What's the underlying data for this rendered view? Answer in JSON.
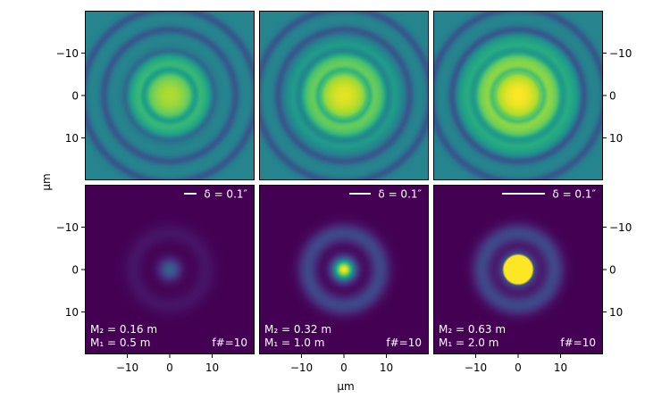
{
  "chart_data": {
    "type": "heatmap",
    "layout": "2x3 panel grid, shared axes",
    "xlabel": "μm",
    "ylabel": "μm",
    "xlim": [
      -20,
      20
    ],
    "ylim": [
      -20,
      20
    ],
    "xticks": [
      -10,
      0,
      10
    ],
    "yticks": [
      -10,
      0,
      10
    ],
    "xtick_labels": [
      "−10",
      "0",
      "10"
    ],
    "ytick_labels": [
      "10",
      "0",
      "−10"
    ],
    "colormap": "viridis",
    "rows": [
      {
        "name": "top",
        "description_scale": "log intensity",
        "panels": [
          {
            "peak": 0.88,
            "ring_radii": [
              6.0,
              10.5,
              15.5,
              20.5
            ],
            "ring_depth": 0.18,
            "falloff": 0.025
          },
          {
            "peak": 0.96,
            "ring_radii": [
              6.0,
              10.5,
              15.5,
              20.5
            ],
            "ring_depth": 0.18,
            "falloff": 0.02
          },
          {
            "peak": 1.0,
            "ring_radii": [
              6.0,
              10.5,
              15.5,
              20.5
            ],
            "ring_depth": 0.18,
            "falloff": 0.015
          }
        ]
      },
      {
        "name": "bottom",
        "description_scale": "linear intensity",
        "panels": [
          {
            "scalebar_label": "δ = 0.1″",
            "M2": "M₂ = 0.16 m",
            "M1": "M₁ = 0.5 m",
            "fnum": "f#=10",
            "core_peak": 0.32,
            "core_radius": 3.2
          },
          {
            "scalebar_label": "δ = 0.1″",
            "M2": "M₂ = 0.32 m",
            "M1": "M₁ = 1.0 m",
            "fnum": "f#=10",
            "core_peak": 1.0,
            "core_radius": 3.2
          },
          {
            "scalebar_label": "δ = 0.1″",
            "M2": "M₂ = 0.63 m",
            "M1": "M₁ = 2.0 m",
            "fnum": "f#=10",
            "core_peak": 1.0,
            "core_radius": 4.0
          }
        ]
      }
    ]
  }
}
